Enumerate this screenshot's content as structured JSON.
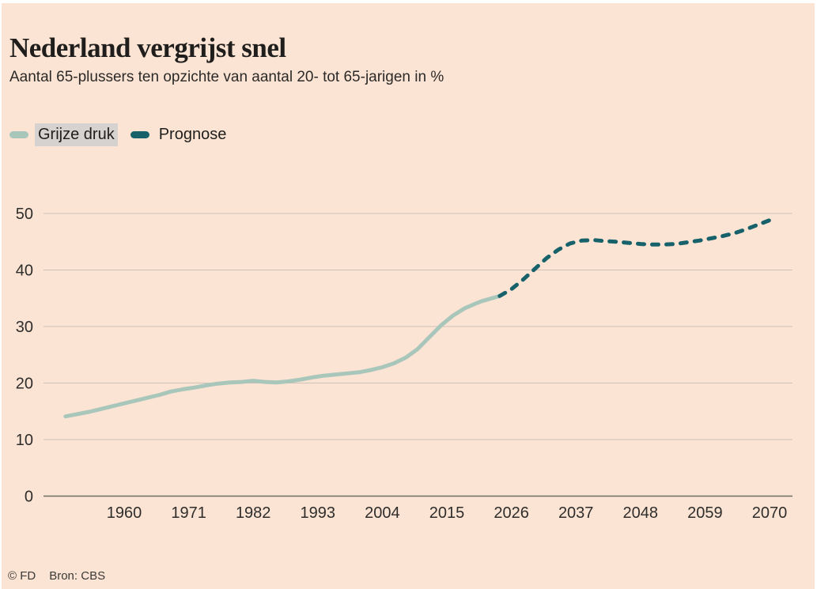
{
  "header": {
    "title": "Nederland vergrijst snel",
    "subtitle": "Aantal 65-plussers ten opzichte van aantal 20- tot 65-jarigen in %"
  },
  "legend": {
    "items": [
      {
        "label": "Grijze druk",
        "color": "#a9c6bb",
        "style": "solid",
        "highlighted": true
      },
      {
        "label": "Prognose",
        "color": "#17626a",
        "style": "dashed",
        "highlighted": false
      }
    ]
  },
  "footer": {
    "credit": "© FD",
    "source": "Bron: CBS"
  },
  "colors": {
    "background": "#fce4d4",
    "text": "#1f1e1c",
    "grid": "#cdc2b8",
    "axis": "#6f6b66",
    "series_history": "#a9c6bb",
    "series_forecast": "#17626a",
    "legend_highlight": "#d5d2cf"
  },
  "chart_data": {
    "type": "line",
    "title": "Nederland vergrijst snel",
    "subtitle": "Aantal 65-plussers ten opzichte van aantal 20- tot 65-jarigen in %",
    "xlabel": "",
    "ylabel": "%",
    "xlim": [
      1948,
      2074
    ],
    "ylim": [
      0,
      50
    ],
    "x_ticks": [
      1960,
      1971,
      1982,
      1993,
      2004,
      2015,
      2026,
      2037,
      2048,
      2059,
      2070
    ],
    "y_ticks": [
      0,
      10,
      20,
      30,
      40,
      50
    ],
    "grid": "horizontal",
    "legend_position": "top-left",
    "source": "Bron: CBS",
    "series": [
      {
        "name": "Grijze druk",
        "style": "solid",
        "color": "#a9c6bb",
        "points": [
          [
            1950,
            14.1
          ],
          [
            1952,
            14.5
          ],
          [
            1954,
            14.9
          ],
          [
            1956,
            15.4
          ],
          [
            1958,
            15.9
          ],
          [
            1960,
            16.4
          ],
          [
            1962,
            16.9
          ],
          [
            1964,
            17.4
          ],
          [
            1966,
            17.9
          ],
          [
            1968,
            18.5
          ],
          [
            1970,
            18.9
          ],
          [
            1972,
            19.2
          ],
          [
            1974,
            19.6
          ],
          [
            1976,
            19.9
          ],
          [
            1978,
            20.1
          ],
          [
            1980,
            20.2
          ],
          [
            1982,
            20.4
          ],
          [
            1984,
            20.2
          ],
          [
            1986,
            20.1
          ],
          [
            1988,
            20.3
          ],
          [
            1990,
            20.6
          ],
          [
            1992,
            21.0
          ],
          [
            1994,
            21.3
          ],
          [
            1996,
            21.5
          ],
          [
            1998,
            21.7
          ],
          [
            2000,
            21.9
          ],
          [
            2002,
            22.3
          ],
          [
            2004,
            22.8
          ],
          [
            2006,
            23.5
          ],
          [
            2008,
            24.5
          ],
          [
            2010,
            26.0
          ],
          [
            2012,
            28.1
          ],
          [
            2014,
            30.2
          ],
          [
            2016,
            31.9
          ],
          [
            2018,
            33.2
          ],
          [
            2020,
            34.1
          ],
          [
            2021,
            34.5
          ],
          [
            2022,
            34.8
          ],
          [
            2023,
            35.1
          ],
          [
            2024,
            35.4
          ]
        ]
      },
      {
        "name": "Prognose",
        "style": "dashed",
        "color": "#17626a",
        "points": [
          [
            2024,
            35.4
          ],
          [
            2026,
            36.6
          ],
          [
            2028,
            38.3
          ],
          [
            2030,
            40.2
          ],
          [
            2032,
            42.1
          ],
          [
            2034,
            43.6
          ],
          [
            2036,
            44.7
          ],
          [
            2038,
            45.2
          ],
          [
            2040,
            45.3
          ],
          [
            2042,
            45.1
          ],
          [
            2044,
            45.0
          ],
          [
            2046,
            44.8
          ],
          [
            2048,
            44.6
          ],
          [
            2050,
            44.5
          ],
          [
            2052,
            44.5
          ],
          [
            2054,
            44.6
          ],
          [
            2056,
            44.9
          ],
          [
            2058,
            45.2
          ],
          [
            2060,
            45.6
          ],
          [
            2062,
            46.0
          ],
          [
            2064,
            46.5
          ],
          [
            2066,
            47.2
          ],
          [
            2068,
            48.0
          ],
          [
            2070,
            48.8
          ]
        ]
      }
    ]
  }
}
